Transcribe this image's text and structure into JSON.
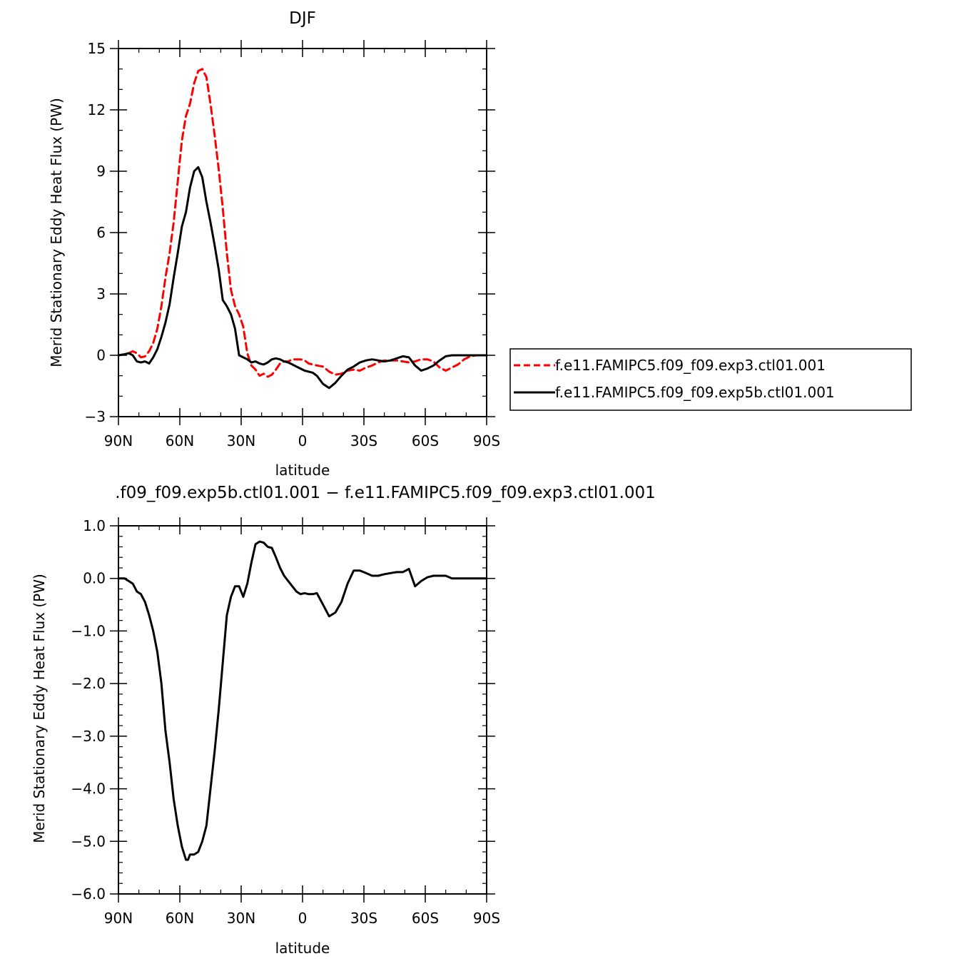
{
  "chart_data": [
    {
      "type": "line",
      "title": "DJF",
      "xlabel": "latitude",
      "ylabel": "Merid Stationary Eddy Heat Flux (PW)",
      "xlim": [
        90,
        -90
      ],
      "ylim": [
        -3,
        15
      ],
      "x_ticks": [
        90,
        60,
        30,
        0,
        -30,
        -60,
        -90
      ],
      "x_tick_labels": [
        "90N",
        "60N",
        "30N",
        "0",
        "30S",
        "60S",
        "90S"
      ],
      "y_ticks": [
        -3,
        0,
        3,
        6,
        9,
        12,
        15
      ],
      "y_tick_labels": [
        "−3",
        "0",
        "3",
        "6",
        "9",
        "12",
        "15"
      ],
      "grid": false,
      "legend_position": "right",
      "series": [
        {
          "name": "f.e11.FAMIPC5.f09_f09.exp3.ctl01.001",
          "color": "#ff0000",
          "dash": "dashed",
          "x": [
            90,
            87,
            85,
            83,
            81,
            79,
            77,
            75,
            73,
            71,
            69,
            67,
            65,
            63,
            61,
            59,
            57,
            55,
            53,
            51,
            49,
            47,
            45,
            43,
            41,
            39,
            37,
            35,
            33,
            31,
            29,
            27,
            25,
            23,
            21,
            19,
            17,
            15,
            13,
            11,
            9,
            7,
            5,
            3,
            1,
            -1,
            -3,
            -5,
            -7,
            -10,
            -13,
            -16,
            -19,
            -22,
            -25,
            -28,
            -31,
            -34,
            -37,
            -40,
            -43,
            -46,
            -49,
            -52,
            -55,
            -58,
            -61,
            -64,
            -67,
            -70,
            -73,
            -76,
            -79,
            -82,
            -85,
            -88,
            -90
          ],
          "y": [
            0.0,
            0.05,
            0.1,
            0.2,
            0.1,
            -0.1,
            -0.05,
            0.2,
            0.6,
            1.3,
            2.4,
            3.8,
            5.0,
            6.5,
            8.5,
            10.5,
            11.7,
            12.3,
            13.3,
            13.9,
            14.0,
            13.6,
            12.3,
            10.8,
            9.1,
            7.2,
            5.0,
            3.2,
            2.4,
            2.0,
            1.4,
            0.1,
            -0.5,
            -0.7,
            -1.0,
            -0.9,
            -1.05,
            -0.95,
            -0.7,
            -0.4,
            -0.3,
            -0.3,
            -0.2,
            -0.2,
            -0.2,
            -0.25,
            -0.4,
            -0.45,
            -0.5,
            -0.55,
            -0.8,
            -0.95,
            -0.9,
            -0.75,
            -0.7,
            -0.75,
            -0.6,
            -0.5,
            -0.35,
            -0.25,
            -0.25,
            -0.25,
            -0.3,
            -0.35,
            -0.3,
            -0.2,
            -0.2,
            -0.3,
            -0.6,
            -0.75,
            -0.6,
            -0.45,
            -0.2,
            -0.05,
            0.0,
            0.0,
            0.0
          ]
        },
        {
          "name": "f.e11.FAMIPC5.f09_f09.exp5b.ctl01.001",
          "color": "#000000",
          "dash": "solid",
          "x": [
            90,
            87,
            85,
            83,
            81,
            79,
            77,
            75,
            73,
            71,
            69,
            67,
            65,
            63,
            61,
            59,
            57,
            55,
            53,
            51,
            49,
            47,
            45,
            43,
            41,
            39,
            37,
            35,
            33,
            31,
            29,
            27,
            25,
            23,
            21,
            19,
            17,
            15,
            13,
            11,
            9,
            7,
            5,
            3,
            1,
            -1,
            -3,
            -5,
            -7,
            -10,
            -13,
            -16,
            -19,
            -22,
            -25,
            -28,
            -31,
            -34,
            -37,
            -40,
            -43,
            -46,
            -49,
            -52,
            -55,
            -58,
            -61,
            -64,
            -67,
            -70,
            -73,
            -76,
            -79,
            -82,
            -85,
            -88,
            -90
          ],
          "y": [
            0.0,
            0.05,
            0.1,
            0.0,
            -0.3,
            -0.35,
            -0.3,
            -0.4,
            -0.1,
            0.3,
            0.9,
            1.6,
            2.5,
            3.8,
            5.0,
            6.3,
            7.0,
            8.2,
            9.0,
            9.2,
            8.7,
            7.5,
            6.5,
            5.4,
            4.2,
            2.7,
            2.4,
            2.0,
            1.3,
            0.0,
            -0.1,
            -0.2,
            -0.35,
            -0.3,
            -0.4,
            -0.45,
            -0.35,
            -0.2,
            -0.15,
            -0.2,
            -0.3,
            -0.35,
            -0.45,
            -0.55,
            -0.65,
            -0.75,
            -0.8,
            -0.85,
            -1.0,
            -1.4,
            -1.6,
            -1.35,
            -1.0,
            -0.7,
            -0.55,
            -0.35,
            -0.25,
            -0.2,
            -0.25,
            -0.3,
            -0.25,
            -0.15,
            -0.05,
            -0.1,
            -0.5,
            -0.75,
            -0.65,
            -0.5,
            -0.25,
            -0.05,
            0.0,
            0.0,
            0.0,
            0.0,
            0.0,
            0.0,
            0.0
          ]
        }
      ]
    },
    {
      "type": "line",
      "title": ".f09_f09.exp5b.ctl01.001 − f.e11.FAMIPC5.f09_f09.exp3.ctl01.001",
      "xlabel": "latitude",
      "ylabel": "Merid Stationary Eddy Heat Flux (PW)",
      "xlim": [
        90,
        -90
      ],
      "ylim": [
        -6,
        1
      ],
      "x_ticks": [
        90,
        60,
        30,
        0,
        -30,
        -60,
        -90
      ],
      "x_tick_labels": [
        "90N",
        "60N",
        "30N",
        "0",
        "30S",
        "60S",
        "90S"
      ],
      "y_ticks": [
        -6,
        -5,
        -4,
        -3,
        -2,
        -1,
        0,
        1
      ],
      "y_tick_labels": [
        "−6.0",
        "−5.0",
        "−4.0",
        "−3.0",
        "−2.0",
        "−1.0",
        "0.0",
        "1.0"
      ],
      "grid": false,
      "series": [
        {
          "color": "#000000",
          "dash": "solid",
          "x": [
            90,
            87,
            85,
            83,
            81,
            79,
            77,
            75,
            73,
            71,
            69,
            67,
            65,
            63,
            61,
            59,
            57,
            56,
            55,
            54,
            53,
            51,
            49,
            47,
            45,
            43,
            41,
            39,
            37,
            35,
            33,
            31,
            29,
            27,
            25,
            23,
            21,
            19,
            17,
            15,
            13,
            11,
            9,
            7,
            5,
            3,
            1,
            -1,
            -3,
            -5,
            -7,
            -10,
            -13,
            -16,
            -19,
            -22,
            -25,
            -28,
            -31,
            -34,
            -37,
            -40,
            -43,
            -46,
            -49,
            -52,
            -55,
            -58,
            -61,
            -64,
            -67,
            -70,
            -73,
            -76,
            -79,
            -82,
            -85,
            -88,
            -90
          ],
          "y": [
            0.0,
            0.0,
            -0.05,
            -0.1,
            -0.25,
            -0.3,
            -0.45,
            -0.7,
            -1.0,
            -1.4,
            -2.0,
            -2.9,
            -3.5,
            -4.2,
            -4.7,
            -5.1,
            -5.35,
            -5.35,
            -5.25,
            -5.25,
            -5.25,
            -5.2,
            -5.0,
            -4.7,
            -4.0,
            -3.3,
            -2.5,
            -1.6,
            -0.7,
            -0.35,
            -0.15,
            -0.15,
            -0.35,
            -0.1,
            0.3,
            0.65,
            0.7,
            0.68,
            0.6,
            0.58,
            0.4,
            0.2,
            0.05,
            -0.05,
            -0.15,
            -0.25,
            -0.3,
            -0.28,
            -0.3,
            -0.3,
            -0.28,
            -0.5,
            -0.72,
            -0.65,
            -0.45,
            -0.1,
            0.15,
            0.15,
            0.1,
            0.05,
            0.05,
            0.08,
            0.1,
            0.12,
            0.12,
            0.18,
            -0.15,
            -0.05,
            0.02,
            0.05,
            0.05,
            0.05,
            0.0,
            0.0,
            0.0,
            0.0,
            0.0,
            0.0,
            0.0
          ]
        }
      ]
    }
  ]
}
